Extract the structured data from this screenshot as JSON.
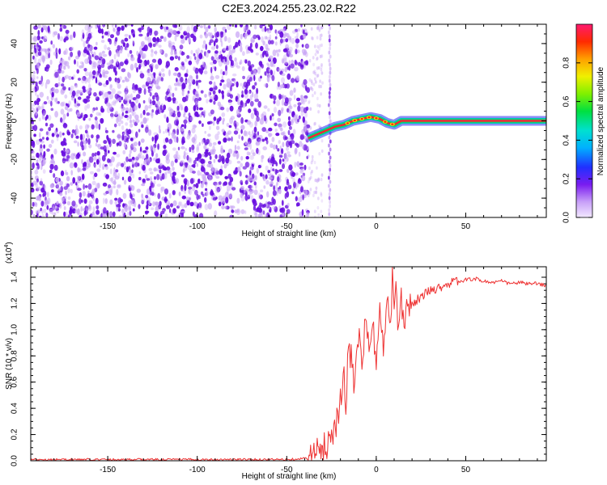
{
  "title": "C2E3.2024.255.23.02.R22",
  "colors": {
    "snr_line": "#ee3333",
    "speckle_dark": "#6a10e0",
    "speckle_light": "#c9a6f5",
    "signal_core": "#ff1a3c",
    "signal_halo": "#00c9b0"
  },
  "chart_data": [
    {
      "type": "heatmap",
      "name": "spectrogram",
      "xlabel": "Height of straight line (km)",
      "ylabel": "Frequency (Hz)",
      "xlim": [
        -193,
        95
      ],
      "ylim": [
        -50,
        50
      ],
      "x_ticks": [
        -150,
        -100,
        -50,
        0,
        50
      ],
      "y_ticks": [
        -40,
        -20,
        0,
        20,
        40
      ],
      "noise_region_x": [
        -193,
        -38
      ],
      "scatter_line_x": -26,
      "signal_path": [
        {
          "x": -38,
          "y": -9
        },
        {
          "x": -33,
          "y": -7
        },
        {
          "x": -28,
          "y": -5
        },
        {
          "x": -23,
          "y": -3
        },
        {
          "x": -18,
          "y": -2
        },
        {
          "x": -13,
          "y": 0
        },
        {
          "x": -8,
          "y": 1
        },
        {
          "x": -3,
          "y": 2
        },
        {
          "x": 2,
          "y": 1
        },
        {
          "x": 6,
          "y": -1
        },
        {
          "x": 10,
          "y": -2
        },
        {
          "x": 14,
          "y": 0
        },
        {
          "x": 20,
          "y": 0
        },
        {
          "x": 95,
          "y": 0
        }
      ],
      "colorbar": {
        "label": "Normalized spectral amplitude",
        "ticks": [
          0.0,
          0.2,
          0.4,
          0.6,
          0.8
        ],
        "tick_labels": [
          "0.0",
          "0.2",
          "0.4",
          "0.6",
          "0.8"
        ],
        "range": [
          0,
          1
        ],
        "colormap": "rainbow"
      }
    },
    {
      "type": "line",
      "name": "snr",
      "xlabel": "Height of straight line (km)",
      "ylabel": "SNR (10 * v/v)",
      "y_multiplier_label": "(x10^4)",
      "xlim": [
        -193,
        95
      ],
      "ylim": [
        0,
        1.48
      ],
      "x_ticks": [
        -150,
        -100,
        -50,
        0,
        50
      ],
      "y_ticks": [
        0.0,
        0.2,
        0.4,
        0.6,
        0.8,
        1.0,
        1.2,
        1.4
      ],
      "y_tick_labels": [
        "0.0",
        "0.2",
        "0.4",
        "0.6",
        "0.8",
        "1.0",
        "1.2",
        "1.4"
      ],
      "series": [
        {
          "x": [
            -193,
            -150,
            -100,
            -50,
            -38,
            -33,
            -30,
            -28,
            -25,
            -22,
            -20,
            -18,
            -17,
            -16,
            -14,
            -12,
            -10,
            -8,
            -6,
            -4,
            -2,
            0,
            2,
            4,
            6,
            8,
            9,
            10,
            11,
            12,
            14,
            16,
            18,
            20,
            25,
            30,
            35,
            40,
            45,
            50,
            55,
            60,
            65,
            70,
            75,
            80,
            85,
            90,
            95
          ],
          "y": [
            0.01,
            0.01,
            0.01,
            0.01,
            0.02,
            0.06,
            0.09,
            0.12,
            0.2,
            0.32,
            0.45,
            0.6,
            0.35,
            0.75,
            0.85,
            0.55,
            0.95,
            0.75,
            1.05,
            0.85,
            1.0,
            0.8,
            1.1,
            0.9,
            1.2,
            1.0,
            1.48,
            1.1,
            1.25,
            1.05,
            1.2,
            1.1,
            1.22,
            1.2,
            1.25,
            1.3,
            1.32,
            1.35,
            1.37,
            1.38,
            1.39,
            1.37,
            1.36,
            1.37,
            1.35,
            1.36,
            1.35,
            1.35,
            1.34
          ]
        }
      ]
    }
  ]
}
